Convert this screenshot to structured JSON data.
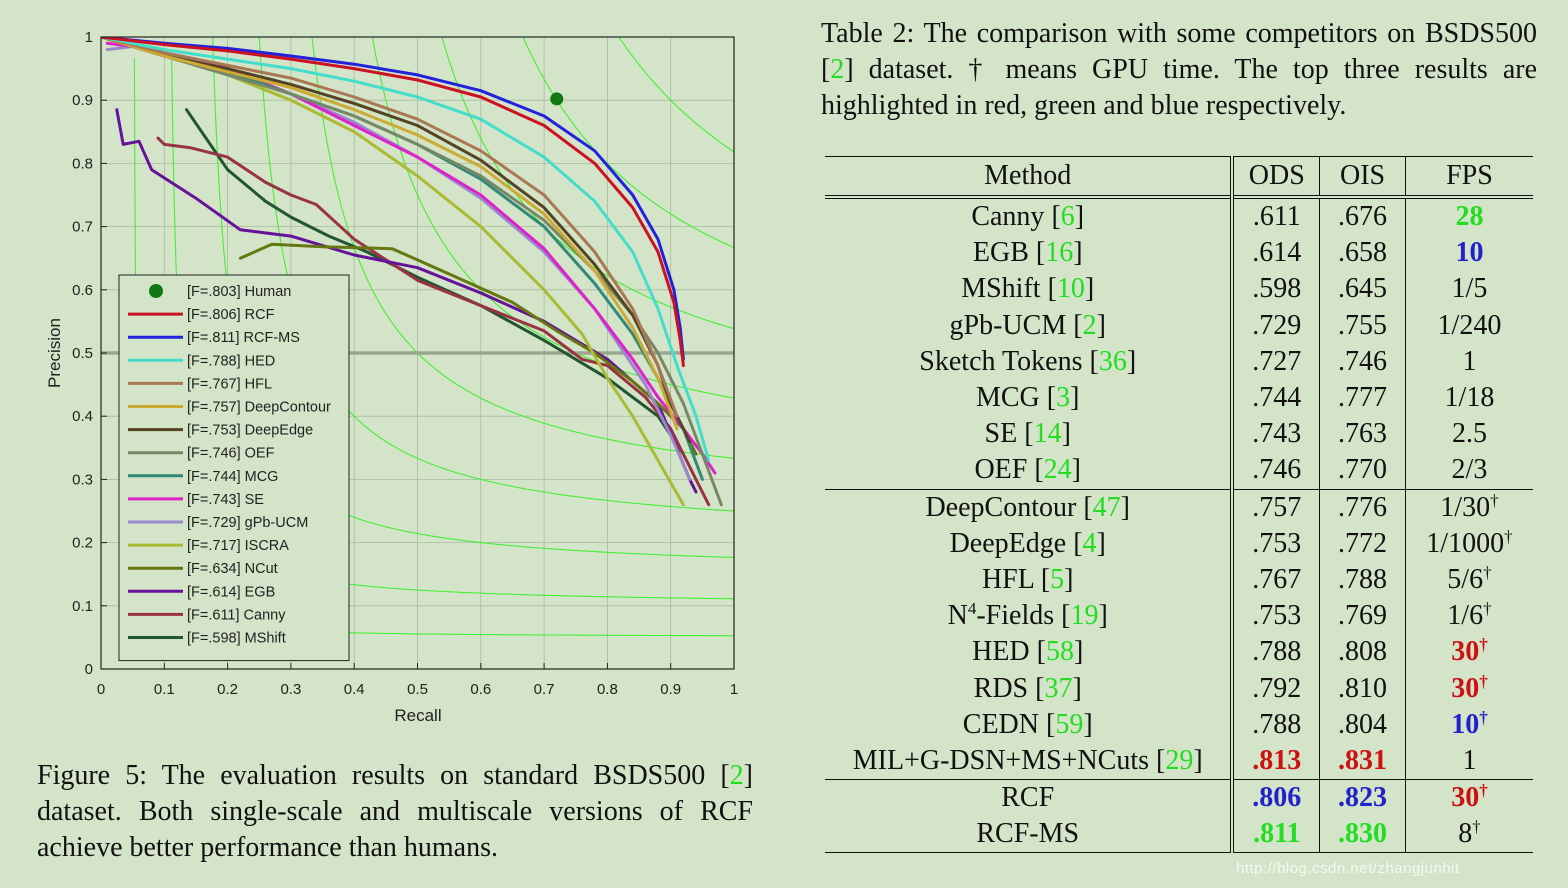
{
  "figure": {
    "caption_prefix": "Figure 5: The evaluation results on standard BSDS500 [",
    "caption_cite": "2",
    "caption_suffix": "] dataset. Both single-scale and multiscale versions of RCF achieve better performance than humans."
  },
  "table_caption": {
    "prefix": "Table 2: The comparison with some competitors on BSDS500 [",
    "cite": "2",
    "suffix": "] dataset. † means GPU time. The top three results are highlighted in red, green and blue respectively."
  },
  "table": {
    "headers": [
      "Method",
      "ODS",
      "OIS",
      "FPS"
    ],
    "rows": [
      {
        "method": "Canny",
        "cite": "6",
        "ods": ".611",
        "ois": ".676",
        "fps": "28",
        "fps_style": "green"
      },
      {
        "method": "EGB",
        "cite": "16",
        "ods": ".614",
        "ois": ".658",
        "fps": "10",
        "fps_style": "blue"
      },
      {
        "method": "MShift",
        "cite": "10",
        "ods": ".598",
        "ois": ".645",
        "fps": "1/5"
      },
      {
        "method": "gPb-UCM",
        "cite": "2",
        "ods": ".729",
        "ois": ".755",
        "fps": "1/240"
      },
      {
        "method": "Sketch Tokens",
        "cite": "36",
        "ods": ".727",
        "ois": ".746",
        "fps": "1"
      },
      {
        "method": "MCG",
        "cite": "3",
        "ods": ".744",
        "ois": ".777",
        "fps": "1/18"
      },
      {
        "method": "SE",
        "cite": "14",
        "ods": ".743",
        "ois": ".763",
        "fps": "2.5"
      },
      {
        "method": "OEF",
        "cite": "24",
        "ods": ".746",
        "ois": ".770",
        "fps": "2/3"
      },
      {
        "method": "DeepContour",
        "cite": "47",
        "ods": ".757",
        "ois": ".776",
        "fps": "1/30",
        "fps_sup": "†",
        "sep": true
      },
      {
        "method": "DeepEdge",
        "cite": "4",
        "ods": ".753",
        "ois": ".772",
        "fps": "1/1000",
        "fps_sup": "†"
      },
      {
        "method": "HFL",
        "cite": "5",
        "ods": ".767",
        "ois": ".788",
        "fps": "5/6",
        "fps_sup": "†"
      },
      {
        "method": "N",
        "method_sup": "4",
        "method_rest": "-Fields",
        "cite": "19",
        "ods": ".753",
        "ois": ".769",
        "fps": "1/6",
        "fps_sup": "†"
      },
      {
        "method": "HED",
        "cite": "58",
        "ods": ".788",
        "ois": ".808",
        "fps": "30",
        "fps_sup": "†",
        "fps_style": "red"
      },
      {
        "method": "RDS",
        "cite": "37",
        "ods": ".792",
        "ois": ".810",
        "fps": "30",
        "fps_sup": "†",
        "fps_style": "red"
      },
      {
        "method": "CEDN",
        "cite": "59",
        "ods": ".788",
        "ois": ".804",
        "fps": "10",
        "fps_sup": "†",
        "fps_style": "blue"
      },
      {
        "method": "MIL+G-DSN+MS+NCuts",
        "cite": "29",
        "ods": ".813",
        "ois": ".831",
        "fps": "1",
        "ods_style": "red",
        "ois_style": "red"
      },
      {
        "method": "RCF",
        "ods": ".806",
        "ois": ".823",
        "fps": "30",
        "fps_sup": "†",
        "ods_style": "blue",
        "ois_style": "blue",
        "fps_style": "red",
        "sep": true
      },
      {
        "method": "RCF-MS",
        "ods": ".811",
        "ois": ".830",
        "fps": "8",
        "fps_sup": "†",
        "ods_style": "green",
        "ois_style": "green"
      }
    ]
  },
  "watermark": "http://blog.csdn.net/zhangjunhit",
  "chart_data": {
    "type": "line",
    "title": "",
    "xlabel": "Recall",
    "ylabel": "Precision",
    "xlim": [
      0,
      1
    ],
    "ylim": [
      0,
      1
    ],
    "xticks": [
      "0",
      "0.1",
      "0.2",
      "0.3",
      "0.4",
      "0.5",
      "0.6",
      "0.7",
      "0.8",
      "0.9",
      "1"
    ],
    "yticks": [
      "0",
      "0.1",
      "0.2",
      "0.3",
      "0.4",
      "0.5",
      "0.6",
      "0.7",
      "0.8",
      "0.9",
      "1"
    ],
    "grid": true,
    "legend_position": "bottom-left",
    "reference_line_y": 0.5,
    "iso_f_levels": [
      0.1,
      0.2,
      0.3,
      0.4,
      0.5,
      0.6,
      0.7,
      0.8,
      0.9
    ],
    "human_point": {
      "label": "[F=.803] Human",
      "x": 0.72,
      "y": 0.902,
      "color": "#117711"
    },
    "series": [
      {
        "name": "[F=.806] RCF",
        "color": "#cc1122",
        "x": [
          0,
          0.1,
          0.2,
          0.3,
          0.4,
          0.5,
          0.6,
          0.7,
          0.78,
          0.84,
          0.88,
          0.905,
          0.915,
          0.92
        ],
        "y": [
          1,
          0.988,
          0.978,
          0.965,
          0.95,
          0.932,
          0.905,
          0.86,
          0.8,
          0.73,
          0.66,
          0.58,
          0.52,
          0.48
        ]
      },
      {
        "name": "[F=.811] RCF-MS",
        "color": "#2222dd",
        "x": [
          0,
          0.1,
          0.2,
          0.3,
          0.4,
          0.5,
          0.6,
          0.7,
          0.78,
          0.84,
          0.88,
          0.905,
          0.915,
          0.92
        ],
        "y": [
          1,
          0.99,
          0.982,
          0.97,
          0.957,
          0.94,
          0.915,
          0.875,
          0.82,
          0.75,
          0.68,
          0.6,
          0.54,
          0.49
        ]
      },
      {
        "name": "[F=.788] HED",
        "color": "#44ddcc",
        "x": [
          0,
          0.1,
          0.2,
          0.3,
          0.4,
          0.5,
          0.6,
          0.7,
          0.78,
          0.84,
          0.88,
          0.91,
          0.94,
          0.96
        ],
        "y": [
          1,
          0.98,
          0.965,
          0.95,
          0.93,
          0.905,
          0.87,
          0.81,
          0.74,
          0.66,
          0.57,
          0.48,
          0.4,
          0.33
        ]
      },
      {
        "name": "[F=.767] HFL",
        "color": "#aa7755",
        "x": [
          0,
          0.1,
          0.2,
          0.3,
          0.4,
          0.5,
          0.6,
          0.7,
          0.78,
          0.84,
          0.88,
          0.91
        ],
        "y": [
          1,
          0.975,
          0.955,
          0.935,
          0.905,
          0.87,
          0.82,
          0.75,
          0.66,
          0.57,
          0.48,
          0.4
        ]
      },
      {
        "name": "[F=.757] DeepContour",
        "color": "#ccaa33",
        "x": [
          0,
          0.1,
          0.2,
          0.3,
          0.4,
          0.5,
          0.6,
          0.7,
          0.78,
          0.84,
          0.88,
          0.91
        ],
        "y": [
          1,
          0.97,
          0.945,
          0.92,
          0.885,
          0.845,
          0.795,
          0.72,
          0.63,
          0.54,
          0.46,
          0.38
        ]
      },
      {
        "name": "[F=.753] DeepEdge",
        "color": "#554422",
        "x": [
          0,
          0.1,
          0.2,
          0.3,
          0.4,
          0.5,
          0.6,
          0.7,
          0.78,
          0.84,
          0.88,
          0.9,
          0.93
        ],
        "y": [
          1,
          0.97,
          0.95,
          0.925,
          0.895,
          0.86,
          0.805,
          0.73,
          0.64,
          0.56,
          0.48,
          0.42,
          0.36
        ]
      },
      {
        "name": "[F=.746] OEF",
        "color": "#778866",
        "x": [
          0,
          0.1,
          0.2,
          0.3,
          0.4,
          0.5,
          0.6,
          0.7,
          0.78,
          0.84,
          0.88,
          0.92,
          0.95,
          0.98
        ],
        "y": [
          1,
          0.97,
          0.94,
          0.91,
          0.875,
          0.83,
          0.78,
          0.71,
          0.63,
          0.56,
          0.5,
          0.42,
          0.34,
          0.26
        ]
      },
      {
        "name": "[F=.744] MCG",
        "color": "#338877",
        "x": [
          0,
          0.1,
          0.2,
          0.3,
          0.4,
          0.5,
          0.6,
          0.7,
          0.78,
          0.84,
          0.88,
          0.92,
          0.95
        ],
        "y": [
          1,
          0.975,
          0.945,
          0.91,
          0.875,
          0.83,
          0.775,
          0.7,
          0.61,
          0.53,
          0.46,
          0.38,
          0.3
        ]
      },
      {
        "name": "[F=.743] SE",
        "color": "#dd22cc",
        "x": [
          0.01,
          0.05,
          0.1,
          0.15,
          0.2,
          0.3,
          0.4,
          0.5,
          0.6,
          0.7,
          0.78,
          0.84,
          0.88,
          0.92,
          0.95,
          0.97
        ],
        "y": [
          0.99,
          0.985,
          0.975,
          0.965,
          0.95,
          0.91,
          0.86,
          0.81,
          0.75,
          0.665,
          0.57,
          0.49,
          0.43,
          0.38,
          0.34,
          0.31
        ]
      },
      {
        "name": "[F=.729] gPb-UCM",
        "color": "#9988cc",
        "x": [
          0.01,
          0.05,
          0.1,
          0.2,
          0.3,
          0.4,
          0.5,
          0.6,
          0.7,
          0.78,
          0.82,
          0.86,
          0.9,
          0.93
        ],
        "y": [
          0.98,
          0.985,
          0.97,
          0.945,
          0.91,
          0.865,
          0.81,
          0.745,
          0.66,
          0.57,
          0.51,
          0.45,
          0.37,
          0.3
        ]
      },
      {
        "name": "[F=.717] ISCRA",
        "color": "#aabb33",
        "x": [
          0.05,
          0.1,
          0.2,
          0.3,
          0.4,
          0.5,
          0.6,
          0.7,
          0.76,
          0.8,
          0.84,
          0.88,
          0.92
        ],
        "y": [
          0.99,
          0.975,
          0.94,
          0.9,
          0.85,
          0.78,
          0.7,
          0.6,
          0.53,
          0.46,
          0.4,
          0.33,
          0.26
        ]
      },
      {
        "name": "[F=.634] NCut",
        "color": "#667711",
        "x": [
          0.22,
          0.27,
          0.35,
          0.46,
          0.55,
          0.65,
          0.72,
          0.78,
          0.84,
          0.88,
          0.92,
          0.94
        ],
        "y": [
          0.65,
          0.672,
          0.668,
          0.665,
          0.625,
          0.58,
          0.535,
          0.5,
          0.455,
          0.42,
          0.38,
          0.34
        ]
      },
      {
        "name": "[F=.614] EGB",
        "color": "#661199",
        "x": [
          0.025,
          0.035,
          0.06,
          0.08,
          0.15,
          0.22,
          0.3,
          0.4,
          0.5,
          0.6,
          0.7,
          0.8,
          0.88,
          0.93,
          0.94
        ],
        "y": [
          0.885,
          0.83,
          0.835,
          0.79,
          0.745,
          0.695,
          0.685,
          0.655,
          0.635,
          0.595,
          0.55,
          0.49,
          0.42,
          0.3,
          0.28
        ]
      },
      {
        "name": "[F=.611] Canny",
        "color": "#993344",
        "x": [
          0.09,
          0.1,
          0.14,
          0.2,
          0.26,
          0.3,
          0.34,
          0.4,
          0.5,
          0.6,
          0.7,
          0.76,
          0.8,
          0.86,
          0.9,
          0.94,
          0.96
        ],
        "y": [
          0.84,
          0.83,
          0.825,
          0.81,
          0.77,
          0.75,
          0.735,
          0.68,
          0.615,
          0.575,
          0.535,
          0.49,
          0.48,
          0.43,
          0.38,
          0.3,
          0.26
        ]
      },
      {
        "name": "[F=.598] MShift",
        "color": "#225533",
        "x": [
          0.135,
          0.2,
          0.26,
          0.3,
          0.36,
          0.42,
          0.5,
          0.6,
          0.7,
          0.8,
          0.88,
          0.92
        ],
        "y": [
          0.885,
          0.79,
          0.74,
          0.715,
          0.685,
          0.66,
          0.62,
          0.575,
          0.52,
          0.46,
          0.4,
          0.34
        ]
      }
    ]
  }
}
